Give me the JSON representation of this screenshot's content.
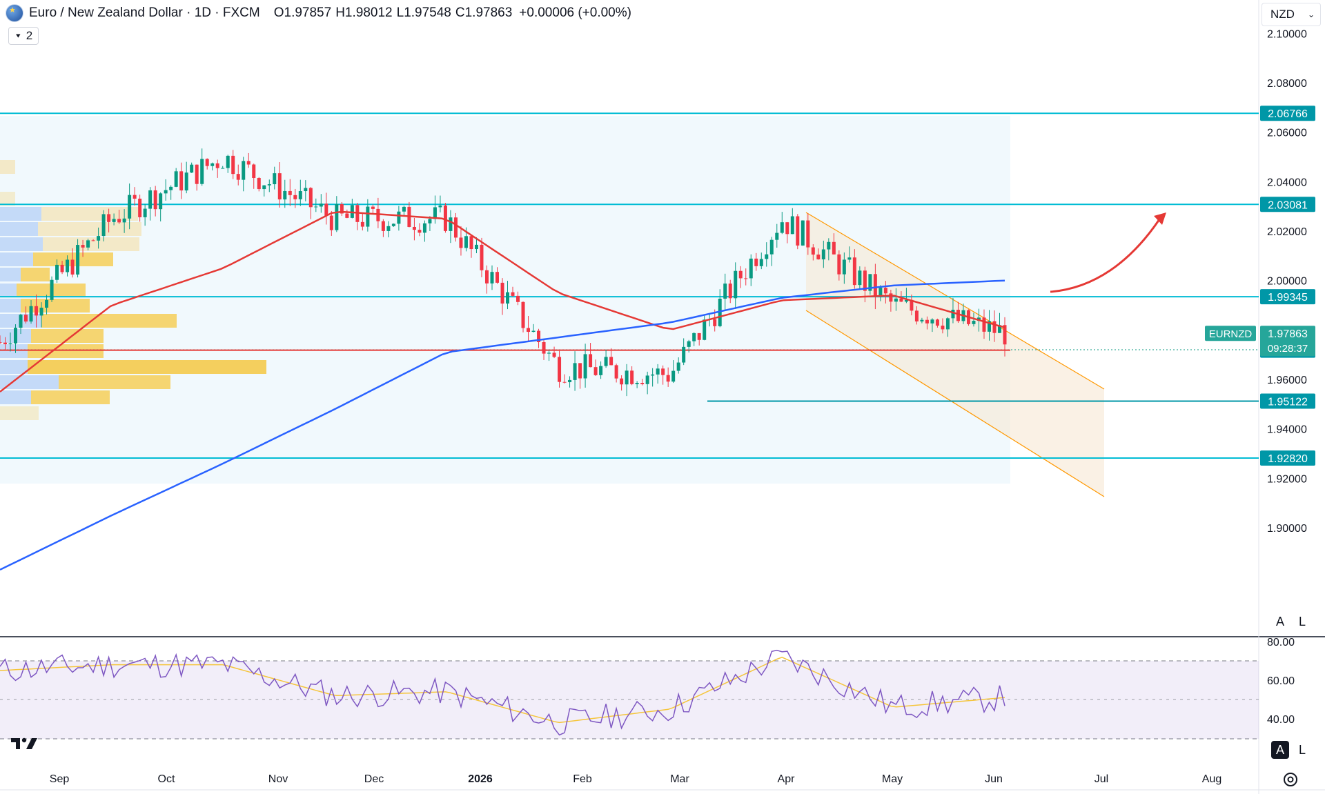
{
  "header": {
    "symbol_title": "Euro / New Zealand Dollar · 1D · FXCM",
    "open_label": "O",
    "open": "1.97857",
    "high_label": "H",
    "high": "1.98012",
    "low_label": "L",
    "low": "1.97548",
    "close_label": "C",
    "close": "1.97863",
    "change": "+0.00006 (+0.00%)",
    "indicators_count": "2",
    "currency": "NZD",
    "symbol_icon": "euro-flag-icon"
  },
  "price_axis": {
    "ticks": [
      "2.10000",
      "2.08000",
      "2.06000",
      "2.04000",
      "2.02000",
      "2.00000",
      "1.96000",
      "1.94000",
      "1.92000",
      "1.90000"
    ],
    "tick_values": [
      2.1,
      2.08,
      2.06,
      2.04,
      2.02,
      2.0,
      1.96,
      1.94,
      1.92,
      1.9
    ],
    "range": [
      1.88,
      2.115
    ],
    "scale_buttons": [
      "A",
      "L"
    ]
  },
  "rsi_axis": {
    "ticks": [
      "80.00",
      "60.00",
      "40.00"
    ],
    "tick_values": [
      80,
      60,
      40
    ],
    "range": [
      30,
      82
    ],
    "scale_buttons": [
      "A",
      "L"
    ]
  },
  "time_axis": {
    "labels": [
      "Sep",
      "Oct",
      "Nov",
      "Dec",
      "2026",
      "Feb",
      "Mar",
      "Apr",
      "May",
      "Jun",
      "Jul",
      "Aug"
    ],
    "bold": [
      "2026"
    ]
  },
  "levels": [
    {
      "label": "2.06766",
      "value": 2.06766
    },
    {
      "label": "2.03081",
      "value": 2.03081
    },
    {
      "label": "1.99345",
      "value": 1.99345
    },
    {
      "label": "1.97183",
      "value": 1.97183
    },
    {
      "label": "1.95122",
      "value": 1.95122
    },
    {
      "label": "1.92820",
      "value": 1.9282
    }
  ],
  "last_price": {
    "symbol": "EURNZD",
    "price": "1.97863",
    "countdown": "09:28:37",
    "value": 1.97863
  },
  "colors": {
    "up": "#089981",
    "down": "#f23645",
    "level": "#00bcd4",
    "level_label_bg": "#0097a7",
    "ma50": "#e53935",
    "ma200": "#2962ff",
    "rsi": "#7e57c2",
    "rsi_ma": "#f5c53b",
    "channel": "#ff9800",
    "arrow": "#e53935",
    "poc": "#e53935",
    "vp_up": "#f5d77a",
    "vp_down": "#a7c4f5"
  },
  "chart_data": {
    "type": "candlestick",
    "symbol": "EURNZD",
    "interval": "1D",
    "ohlc_last": {
      "open": 1.97857,
      "high": 1.98012,
      "low": 1.97548,
      "close": 1.97863
    },
    "horizontal_levels": [
      2.06766,
      2.03081,
      1.99345,
      1.97183,
      1.95122,
      1.9282
    ],
    "approx_close_series": [
      {
        "label": "Sep",
        "close": 1.975
      },
      {
        "label": "Oct",
        "close": 2.025
      },
      {
        "label": "Nov",
        "close": 2.05
      },
      {
        "label": "Dec",
        "close": 2.025
      },
      {
        "label": "2026",
        "close": 2.025
      },
      {
        "label": "Feb",
        "close": 1.965
      },
      {
        "label": "Mar",
        "close": 1.962
      },
      {
        "label": "Apr",
        "close": 2.025
      },
      {
        "label": "May",
        "close": 1.99
      },
      {
        "label": "Jun",
        "close": 1.979
      }
    ],
    "ma_50_approx": [
      {
        "label": "Sep",
        "value": 1.955
      },
      {
        "label": "Oct",
        "value": 1.99
      },
      {
        "label": "Nov",
        "value": 2.005
      },
      {
        "label": "Dec",
        "value": 2.028
      },
      {
        "label": "2026",
        "value": 2.025
      },
      {
        "label": "Feb",
        "value": 1.995
      },
      {
        "label": "Mar",
        "value": 1.98
      },
      {
        "label": "Apr",
        "value": 1.992
      },
      {
        "label": "May",
        "value": 1.994
      },
      {
        "label": "Jun",
        "value": 1.981
      }
    ],
    "ma_200_approx": [
      {
        "label": "Sep",
        "value": 1.883
      },
      {
        "label": "Oct",
        "value": 1.905
      },
      {
        "label": "Nov",
        "value": 1.926
      },
      {
        "label": "Dec",
        "value": 1.948
      },
      {
        "label": "2026",
        "value": 1.971
      },
      {
        "label": "Feb",
        "value": 1.977
      },
      {
        "label": "Mar",
        "value": 1.983
      },
      {
        "label": "Apr",
        "value": 1.993
      },
      {
        "label": "May",
        "value": 1.998
      },
      {
        "label": "Jun",
        "value": 2.0
      }
    ],
    "rsi_approx": [
      {
        "label": "Sep",
        "value": 65
      },
      {
        "label": "Oct",
        "value": 68
      },
      {
        "label": "Nov",
        "value": 68
      },
      {
        "label": "Dec",
        "value": 52
      },
      {
        "label": "2026",
        "value": 54
      },
      {
        "label": "Feb",
        "value": 38
      },
      {
        "label": "Mar",
        "value": 45
      },
      {
        "label": "Apr",
        "value": 72
      },
      {
        "label": "May",
        "value": 46
      },
      {
        "label": "Jun",
        "value": 51
      }
    ],
    "rsi_bands": [
      70,
      50,
      30
    ],
    "ylim": [
      1.88,
      2.115
    ]
  }
}
